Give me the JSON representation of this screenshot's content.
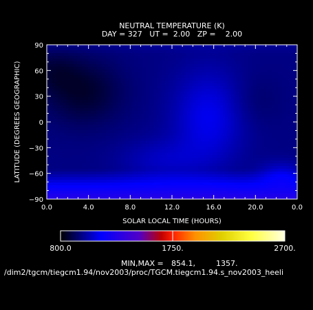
{
  "chart_data": {
    "type": "heatmap",
    "title": "NEUTRAL TEMPERATURE (K)",
    "subtitle": "DAY = 327   UT =  2.00   ZP =    2.00",
    "xlabel": "SOLAR LOCAL TIME (HOURS)",
    "ylabel": "LATITUDE (DEGREES GEOGRAPHIC)",
    "x_ticks": [
      "0.0",
      "4.0",
      "8.0",
      "12.0",
      "16.0",
      "20.0",
      "0.0"
    ],
    "y_ticks": [
      "90",
      "60",
      "30",
      "0",
      "−30",
      "−60",
      "−90"
    ],
    "xlim": [
      0,
      24
    ],
    "ylim": [
      -90,
      90
    ],
    "colorbar": {
      "min_label": "800.0",
      "mid_label": "1750.",
      "max_label": "2700.",
      "range": [
        800,
        2700
      ]
    },
    "minmax_label": "MIN,MAX =",
    "min_value": "854.1,",
    "max_value": "1357.",
    "field_min": 854.1,
    "field_max": 1357,
    "footer_path": "/dim2/tgcm/tiegcm1.94/nov2003/proc/TGCM.tiegcm1.94.s_nov2003_heeli",
    "grid": false,
    "colors": {
      "background": "#000000",
      "foreground": "#ffffff"
    }
  }
}
